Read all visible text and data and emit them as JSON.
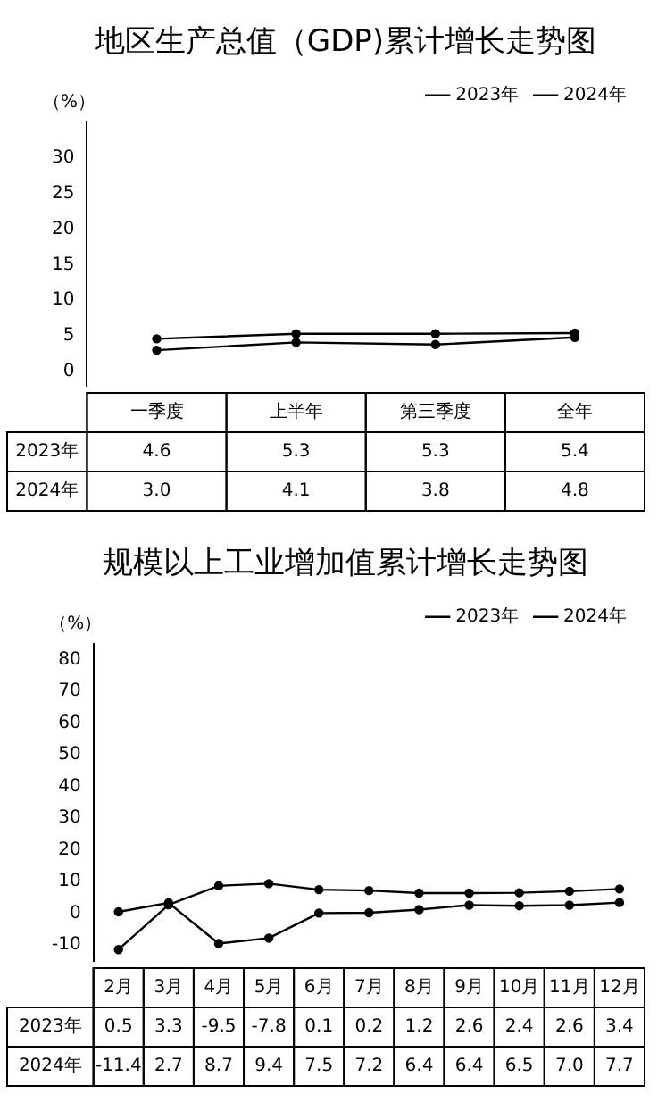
{
  "chart_data": [
    {
      "type": "line",
      "title": "地区生产总值（GDP)累计增长走势图",
      "ylabel": "（%）",
      "categories": [
        "一季度",
        "上半年",
        "第三季度",
        "全年"
      ],
      "series": [
        {
          "name": "2023年",
          "color": "#000000",
          "values": [
            4.6,
            5.3,
            5.3,
            5.4
          ],
          "value_labels": [
            "4.6",
            "5.3",
            "5.3",
            "5.4"
          ]
        },
        {
          "name": "2024年",
          "color": "#000000",
          "values": [
            3.0,
            4.1,
            3.8,
            4.8
          ],
          "value_labels": [
            "3.0",
            "4.1",
            "3.8",
            "4.8"
          ]
        }
      ],
      "ylim": [
        -2,
        35
      ],
      "yticks": [
        0,
        5,
        10,
        15,
        20,
        25,
        30
      ],
      "grid": false,
      "legend": "top right",
      "marker": "circle"
    },
    {
      "type": "line",
      "title": "规模以上工业增加值累计增长走势图",
      "ylabel": "（%）",
      "categories": [
        "2月",
        "3月",
        "4月",
        "5月",
        "6月",
        "7月",
        "8月",
        "9月",
        "10月",
        "11月",
        "12月"
      ],
      "series": [
        {
          "name": "2023年",
          "color": "#000000",
          "values": [
            0.5,
            3.3,
            -9.5,
            -7.8,
            0.1,
            0.2,
            1.2,
            2.6,
            2.4,
            2.6,
            3.4
          ],
          "value_labels": [
            "0.5",
            "3.3",
            "-9.5",
            "-7.8",
            "0.1",
            "0.2",
            "1.2",
            "2.6",
            "2.4",
            "2.6",
            "3.4"
          ]
        },
        {
          "name": "2024年",
          "color": "#000000",
          "values": [
            -11.4,
            2.7,
            8.7,
            9.4,
            7.5,
            7.2,
            6.4,
            6.4,
            6.5,
            7.0,
            7.7
          ],
          "value_labels": [
            "-11.4",
            "2.7",
            "8.7",
            "9.4",
            "7.5",
            "7.2",
            "6.4",
            "6.4",
            "6.5",
            "7.0",
            "7.7"
          ]
        }
      ],
      "ylim": [
        -15,
        85
      ],
      "yticks": [
        -10,
        0,
        10,
        20,
        30,
        40,
        50,
        60,
        70,
        80
      ],
      "grid": false,
      "legend": "top right",
      "marker": "circle"
    }
  ]
}
